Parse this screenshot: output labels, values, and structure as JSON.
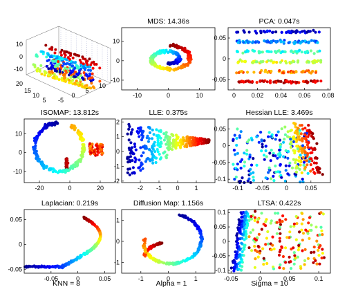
{
  "figure": {
    "captions": [
      "KNN = 8",
      "Alpha = 1",
      "Sigma = 10"
    ]
  },
  "colormap": [
    "#00008f",
    "#0000ff",
    "#0080ff",
    "#00ffff",
    "#80ff80",
    "#ffff00",
    "#ff8000",
    "#ff0000",
    "#800000"
  ],
  "chart_data": [
    {
      "id": "original",
      "type": "scatter3d",
      "title": "",
      "axes": {
        "z_ticks": [
          "10",
          "0",
          "-10"
        ],
        "x_ticks": [
          "20",
          "15",
          "10",
          "5"
        ],
        "y_ticks": [
          "-5",
          "0",
          "5",
          "10"
        ]
      },
      "shape": "swiss-roll",
      "zlim": [
        -12,
        12
      ],
      "xlim": [
        4,
        20
      ],
      "ylim": [
        -10,
        12
      ],
      "points": 340
    },
    {
      "id": "mds",
      "type": "scatter",
      "title": "MDS: 14.36s",
      "xlim": [
        -15,
        15
      ],
      "ylim": [
        -15,
        17
      ],
      "x_ticks": [
        "-10",
        "0",
        "10"
      ],
      "y_ticks": [
        "10",
        "0",
        "-10"
      ],
      "shape": "spiral"
    },
    {
      "id": "pca",
      "type": "scatter",
      "title": "PCA: 0.047s",
      "xlim": [
        -0.005,
        0.082
      ],
      "ylim": [
        -0.075,
        0.075
      ],
      "x_ticks": [
        "0",
        "0.02",
        "0.04",
        "0.06",
        "0.08"
      ],
      "y_ticks": [
        "0.05",
        "0",
        "-0.05"
      ],
      "shape": "bands"
    },
    {
      "id": "isomap",
      "type": "scatter",
      "title": "ISOMAP: 13.812s",
      "xlim": [
        -30,
        30
      ],
      "ylim": [
        -16,
        18
      ],
      "x_ticks": [
        "-20",
        "0",
        "20"
      ],
      "y_ticks": [
        "10",
        "0",
        "-10"
      ],
      "shape": "ring"
    },
    {
      "id": "lle",
      "type": "scatter",
      "title": "LLE: 0.375s",
      "xlim": [
        -3,
        2
      ],
      "ylim": [
        -2.1,
        2.2
      ],
      "x_ticks": [
        "-2",
        "-1",
        "0",
        "1"
      ],
      "y_ticks": [
        "2",
        "1",
        "0",
        "-1",
        "-2"
      ],
      "shape": "fan"
    },
    {
      "id": "hessian_lle",
      "type": "scatter",
      "title": "Hessian LLE: 3.469s",
      "xlim": [
        -0.12,
        0.09
      ],
      "ylim": [
        -0.11,
        0.08
      ],
      "x_ticks": [
        "-0.1",
        "-0.05",
        "0",
        "0.05"
      ],
      "y_ticks": [
        "0.05",
        "0",
        "-0.05",
        "-0.1"
      ],
      "shape": "wedge-right"
    },
    {
      "id": "laplacian",
      "type": "scatter",
      "title": "Laplacian: 0.219s",
      "xlim": [
        -0.1,
        0.07
      ],
      "ylim": [
        -0.058,
        0.07
      ],
      "x_ticks": [
        "-0.05",
        "0",
        "0.05"
      ],
      "y_ticks": [
        "0.05",
        "0",
        "-0.05"
      ],
      "shape": "curve"
    },
    {
      "id": "diffusion_map",
      "type": "scatter",
      "title": "Diffusion Map: 1.156s",
      "xlim": [
        -1.7,
        1.7
      ],
      "ylim": [
        -1.5,
        1.5
      ],
      "x_ticks": [
        "-1",
        "0",
        "1"
      ],
      "y_ticks": [
        "1",
        "0",
        "-1"
      ],
      "shape": "spiral-small"
    },
    {
      "id": "ltsa",
      "type": "scatter",
      "title": "LTSA: 0.422s",
      "xlim": [
        -0.055,
        0.12
      ],
      "ylim": [
        -0.11,
        0.11
      ],
      "x_ticks": [
        "-0.05",
        "0",
        "0.05",
        "0.1"
      ],
      "y_ticks": [
        "0.1",
        "0.05",
        "0",
        "-0.05",
        "-0.1"
      ],
      "shape": "wedge-left"
    }
  ]
}
